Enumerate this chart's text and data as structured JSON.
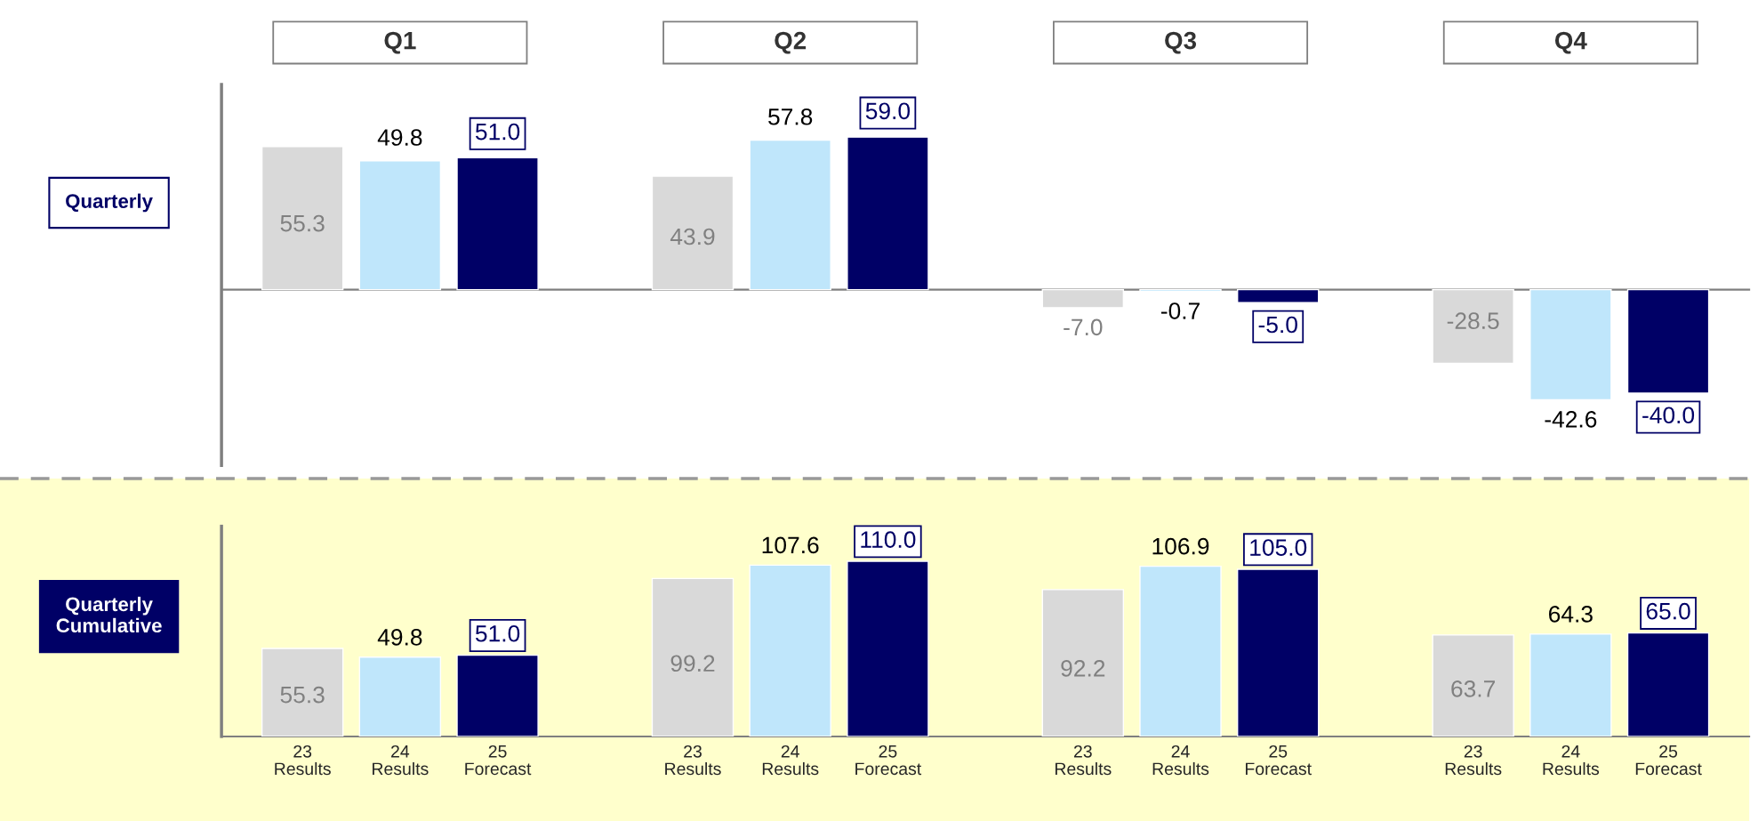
{
  "chart_data": [
    {
      "type": "bar",
      "title": "Quarterly",
      "categories": [
        "Q1",
        "Q2",
        "Q3",
        "Q4"
      ],
      "tick_labels": "x",
      "data_labels": true,
      "series": [
        {
          "color": "#d9d9d9",
          "values": [
            55.3,
            43.9,
            -7.0,
            -28.5
          ],
          "value_labels": [
            "55.3",
            "43.9",
            "-7.0",
            "-28.5"
          ]
        },
        {
          "color": "#bfe6fb",
          "values": [
            49.8,
            57.8,
            -0.7,
            -42.6
          ],
          "value_labels": [
            "49.8",
            "57.8",
            "-0.7",
            "-42.6"
          ]
        },
        {
          "color": "#000066",
          "values": [
            51.0,
            59.0,
            -5.0,
            -40.0
          ],
          "value_labels": [
            "51.0",
            "59.0",
            "-5.0",
            "-40.0"
          ]
        }
      ]
    },
    {
      "type": "bar",
      "title": "Quarterly\nCumulative",
      "categories": [
        null,
        null,
        null,
        null
      ],
      "tick_labels": false,
      "data_labels": true,
      "series": [
        {
          "name": "23\nResults",
          "color": "#d9d9d9",
          "values": [
            55.3,
            99.2,
            92.2,
            63.7
          ],
          "value_labels": [
            "55.3",
            "99.2",
            "92.2",
            "63.7"
          ]
        },
        {
          "name": "24\nResults",
          "color": "#bfe6fb",
          "values": [
            49.8,
            107.6,
            106.9,
            64.3
          ],
          "value_labels": [
            "49.8",
            "107.6",
            "106.9",
            "64.3"
          ]
        },
        {
          "name": "25\nForecast",
          "color": "#000066",
          "values": [
            51.0,
            110.0,
            105.0,
            65.0
          ],
          "value_labels": [
            "51.0",
            "110.0",
            "105.0",
            "65.0"
          ]
        }
      ]
    }
  ]
}
